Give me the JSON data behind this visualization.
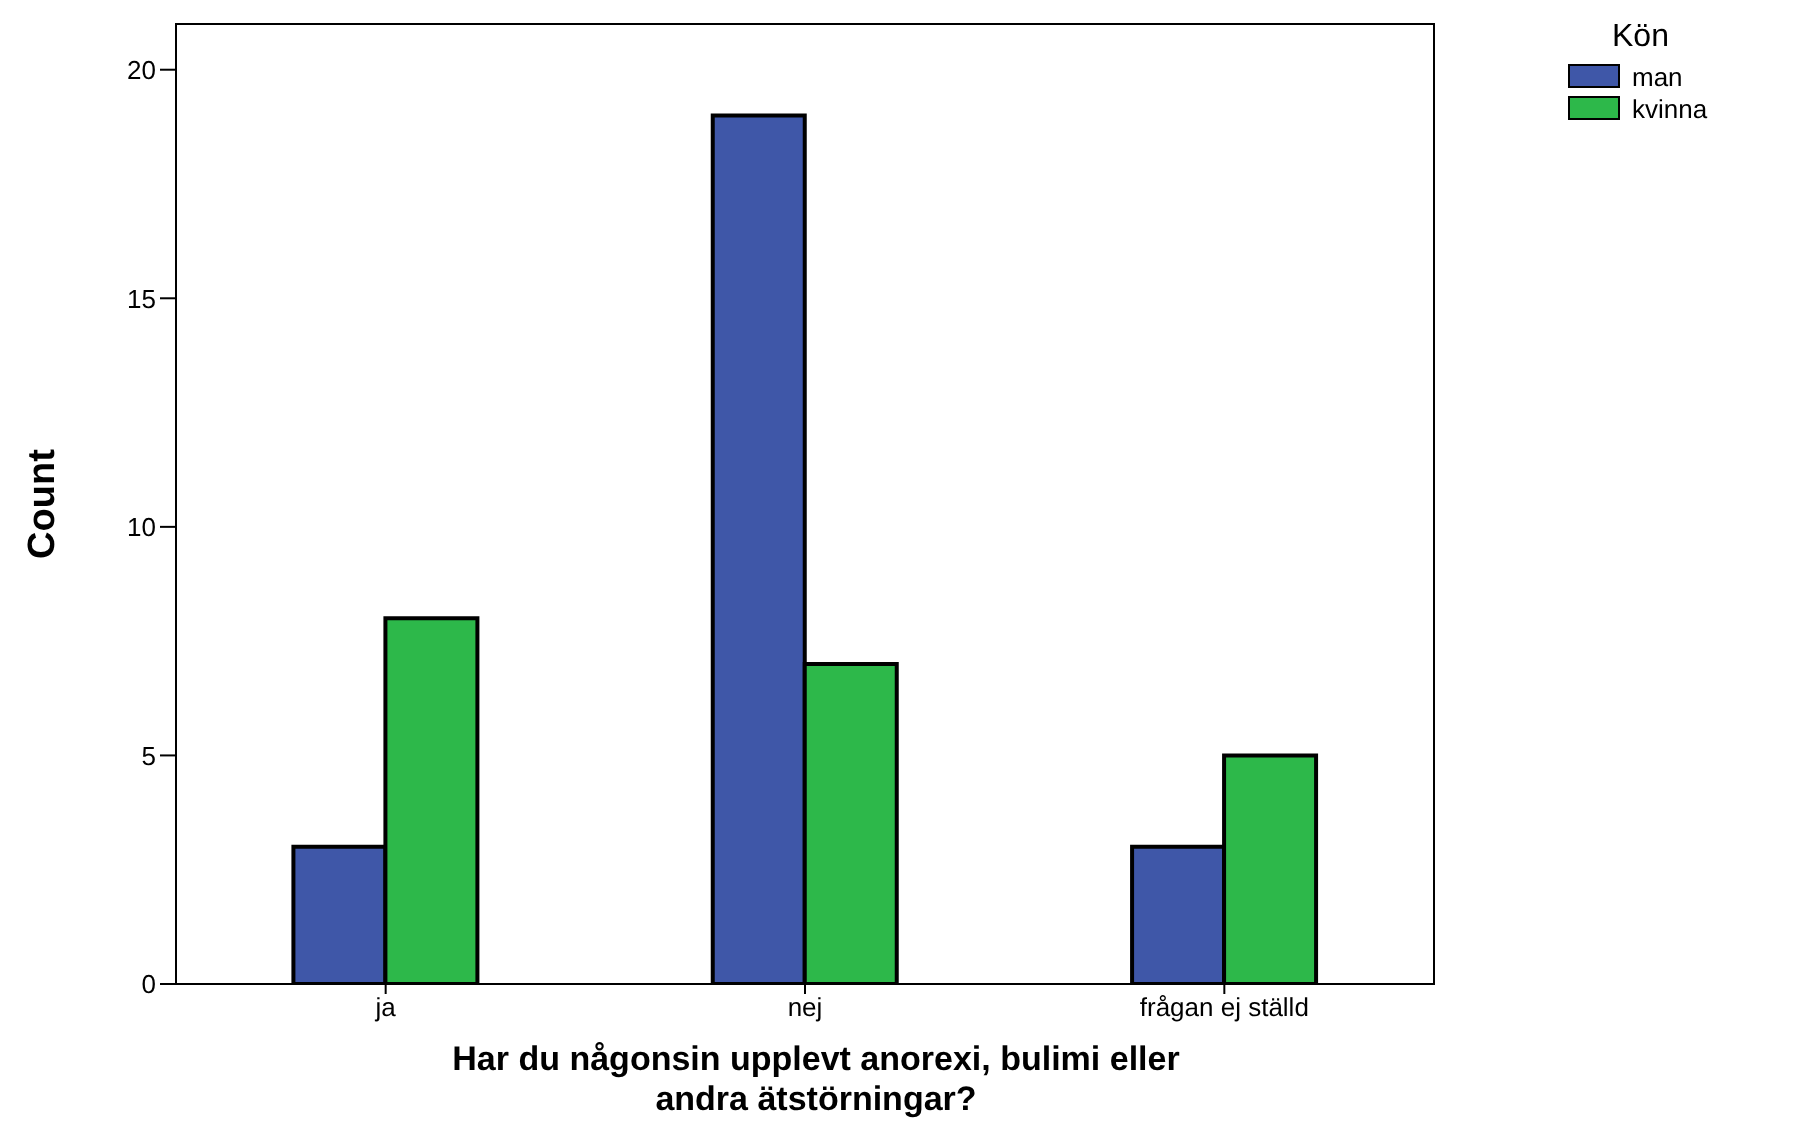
{
  "chart_data": {
    "type": "bar",
    "categories": [
      "ja",
      "nej",
      "frågan ej ställd"
    ],
    "series": [
      {
        "name": "man",
        "color": "#3f57a8",
        "values": [
          3,
          19,
          3
        ]
      },
      {
        "name": "kvinna",
        "color": "#2db84a",
        "values": [
          8,
          7,
          5
        ]
      }
    ],
    "xlabel": "Har du någonsin upplevt anorexi, bulimi eller andra ätstörningar?",
    "ylabel": "Count",
    "legend_title": "Kön",
    "legend": "top right",
    "ylim": [
      0,
      21
    ],
    "yticks": [
      0,
      5,
      10,
      15,
      20
    ],
    "grid": false
  }
}
